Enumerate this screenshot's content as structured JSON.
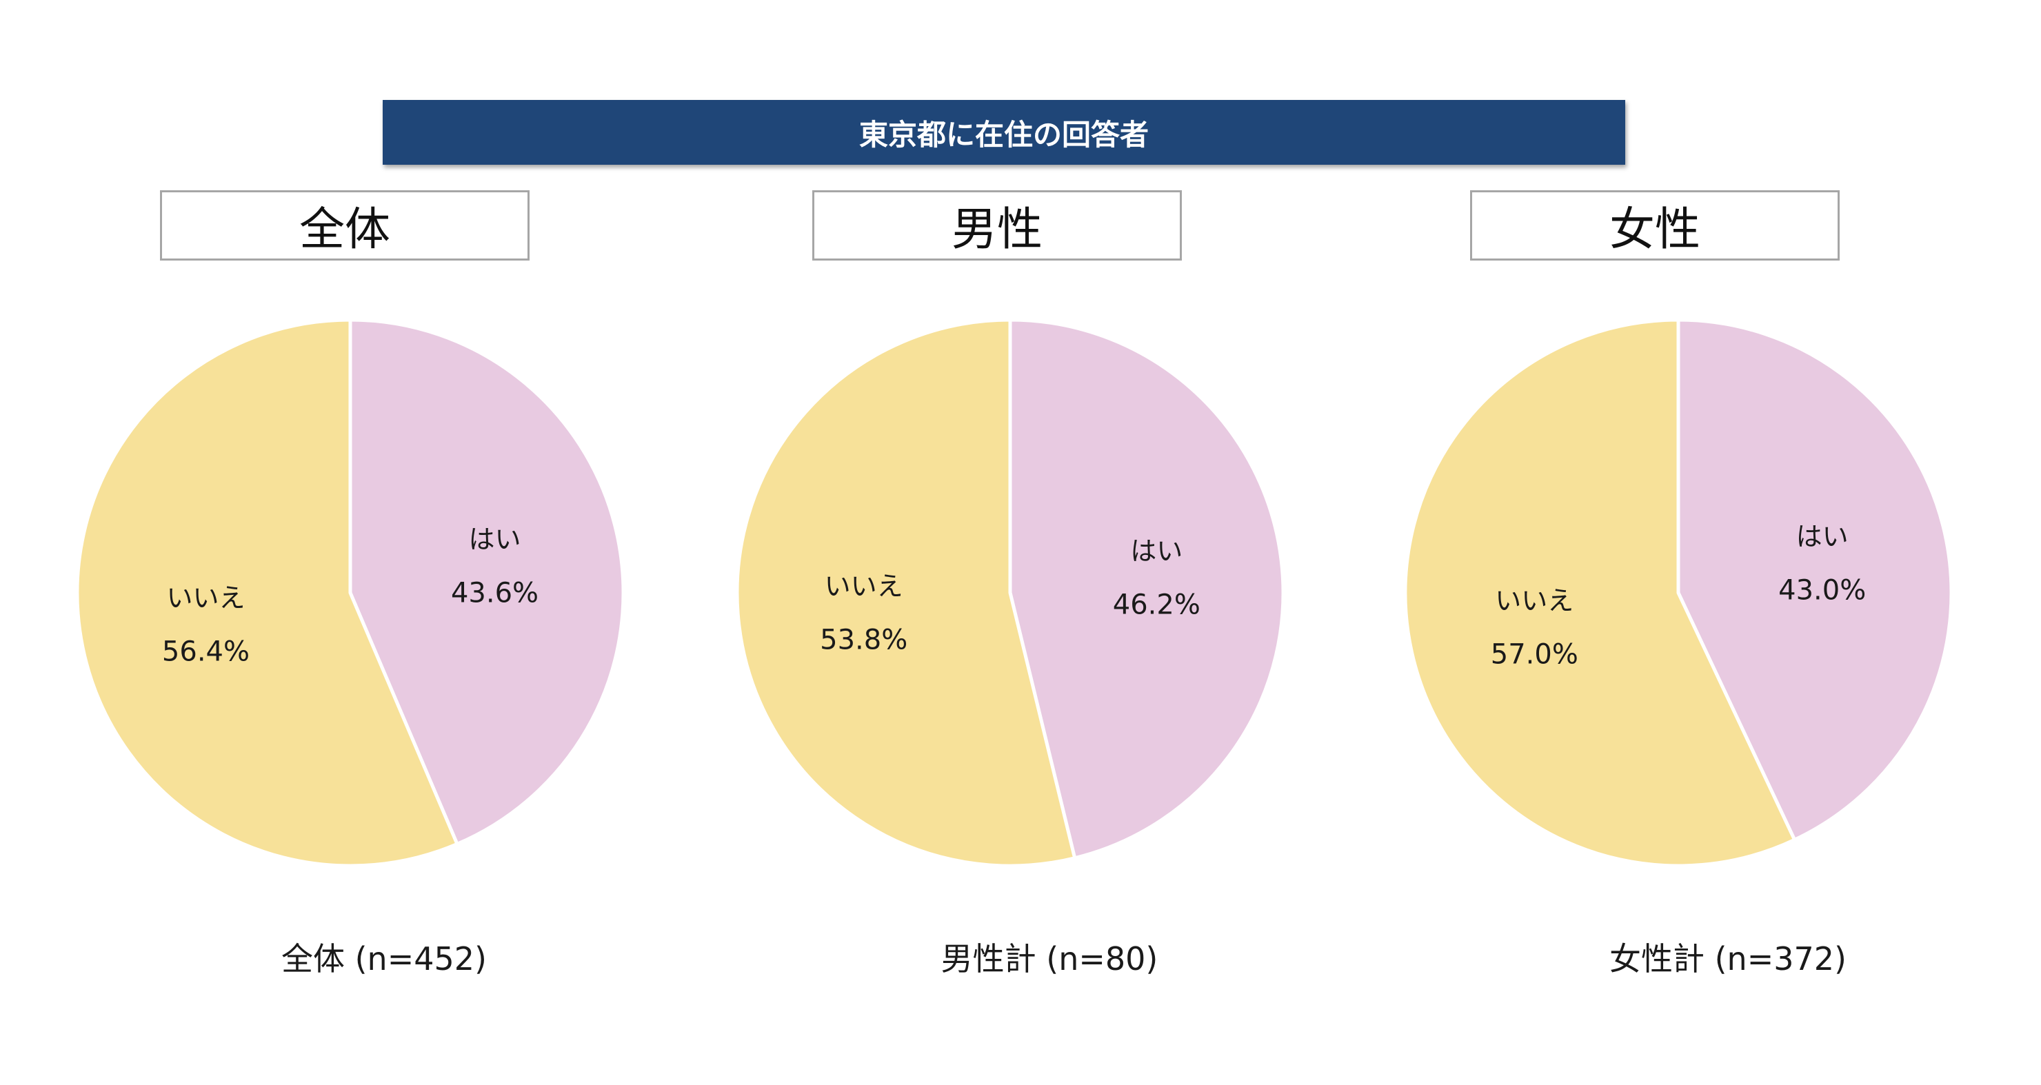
{
  "banner": {
    "title": "東京都に在住の回答者"
  },
  "colors": {
    "banner_bg": "#1f4678",
    "hai": "#e8cae1",
    "iie": "#f7e199",
    "separator": "#ffffff"
  },
  "panels": [
    {
      "header": "全体",
      "footer": "全体 (n=452)"
    },
    {
      "header": "男性",
      "footer": "男性計 (n=80)"
    },
    {
      "header": "女性",
      "footer": "女性計 (n=372)"
    }
  ],
  "chart_data": [
    {
      "type": "pie",
      "title": "全体",
      "slices": [
        {
          "label": "はい",
          "value": 43.6,
          "value_label": "43.6%",
          "color": "#e8cae1"
        },
        {
          "label": "いいえ",
          "value": 56.4,
          "value_label": "56.4%",
          "color": "#f7e199"
        }
      ],
      "start_angle": "12 o'clock",
      "direction": "clockwise"
    },
    {
      "type": "pie",
      "title": "男性",
      "slices": [
        {
          "label": "はい",
          "value": 46.2,
          "value_label": "46.2%",
          "color": "#e8cae1"
        },
        {
          "label": "いいえ",
          "value": 53.8,
          "value_label": "53.8%",
          "color": "#f7e199"
        }
      ],
      "start_angle": "12 o'clock",
      "direction": "clockwise"
    },
    {
      "type": "pie",
      "title": "女性",
      "slices": [
        {
          "label": "はい",
          "value": 43.0,
          "value_label": "43.0%",
          "color": "#e8cae1"
        },
        {
          "label": "いいえ",
          "value": 57.0,
          "value_label": "57.0%",
          "color": "#f7e199"
        }
      ],
      "start_angle": "12 o'clock",
      "direction": "clockwise"
    }
  ]
}
